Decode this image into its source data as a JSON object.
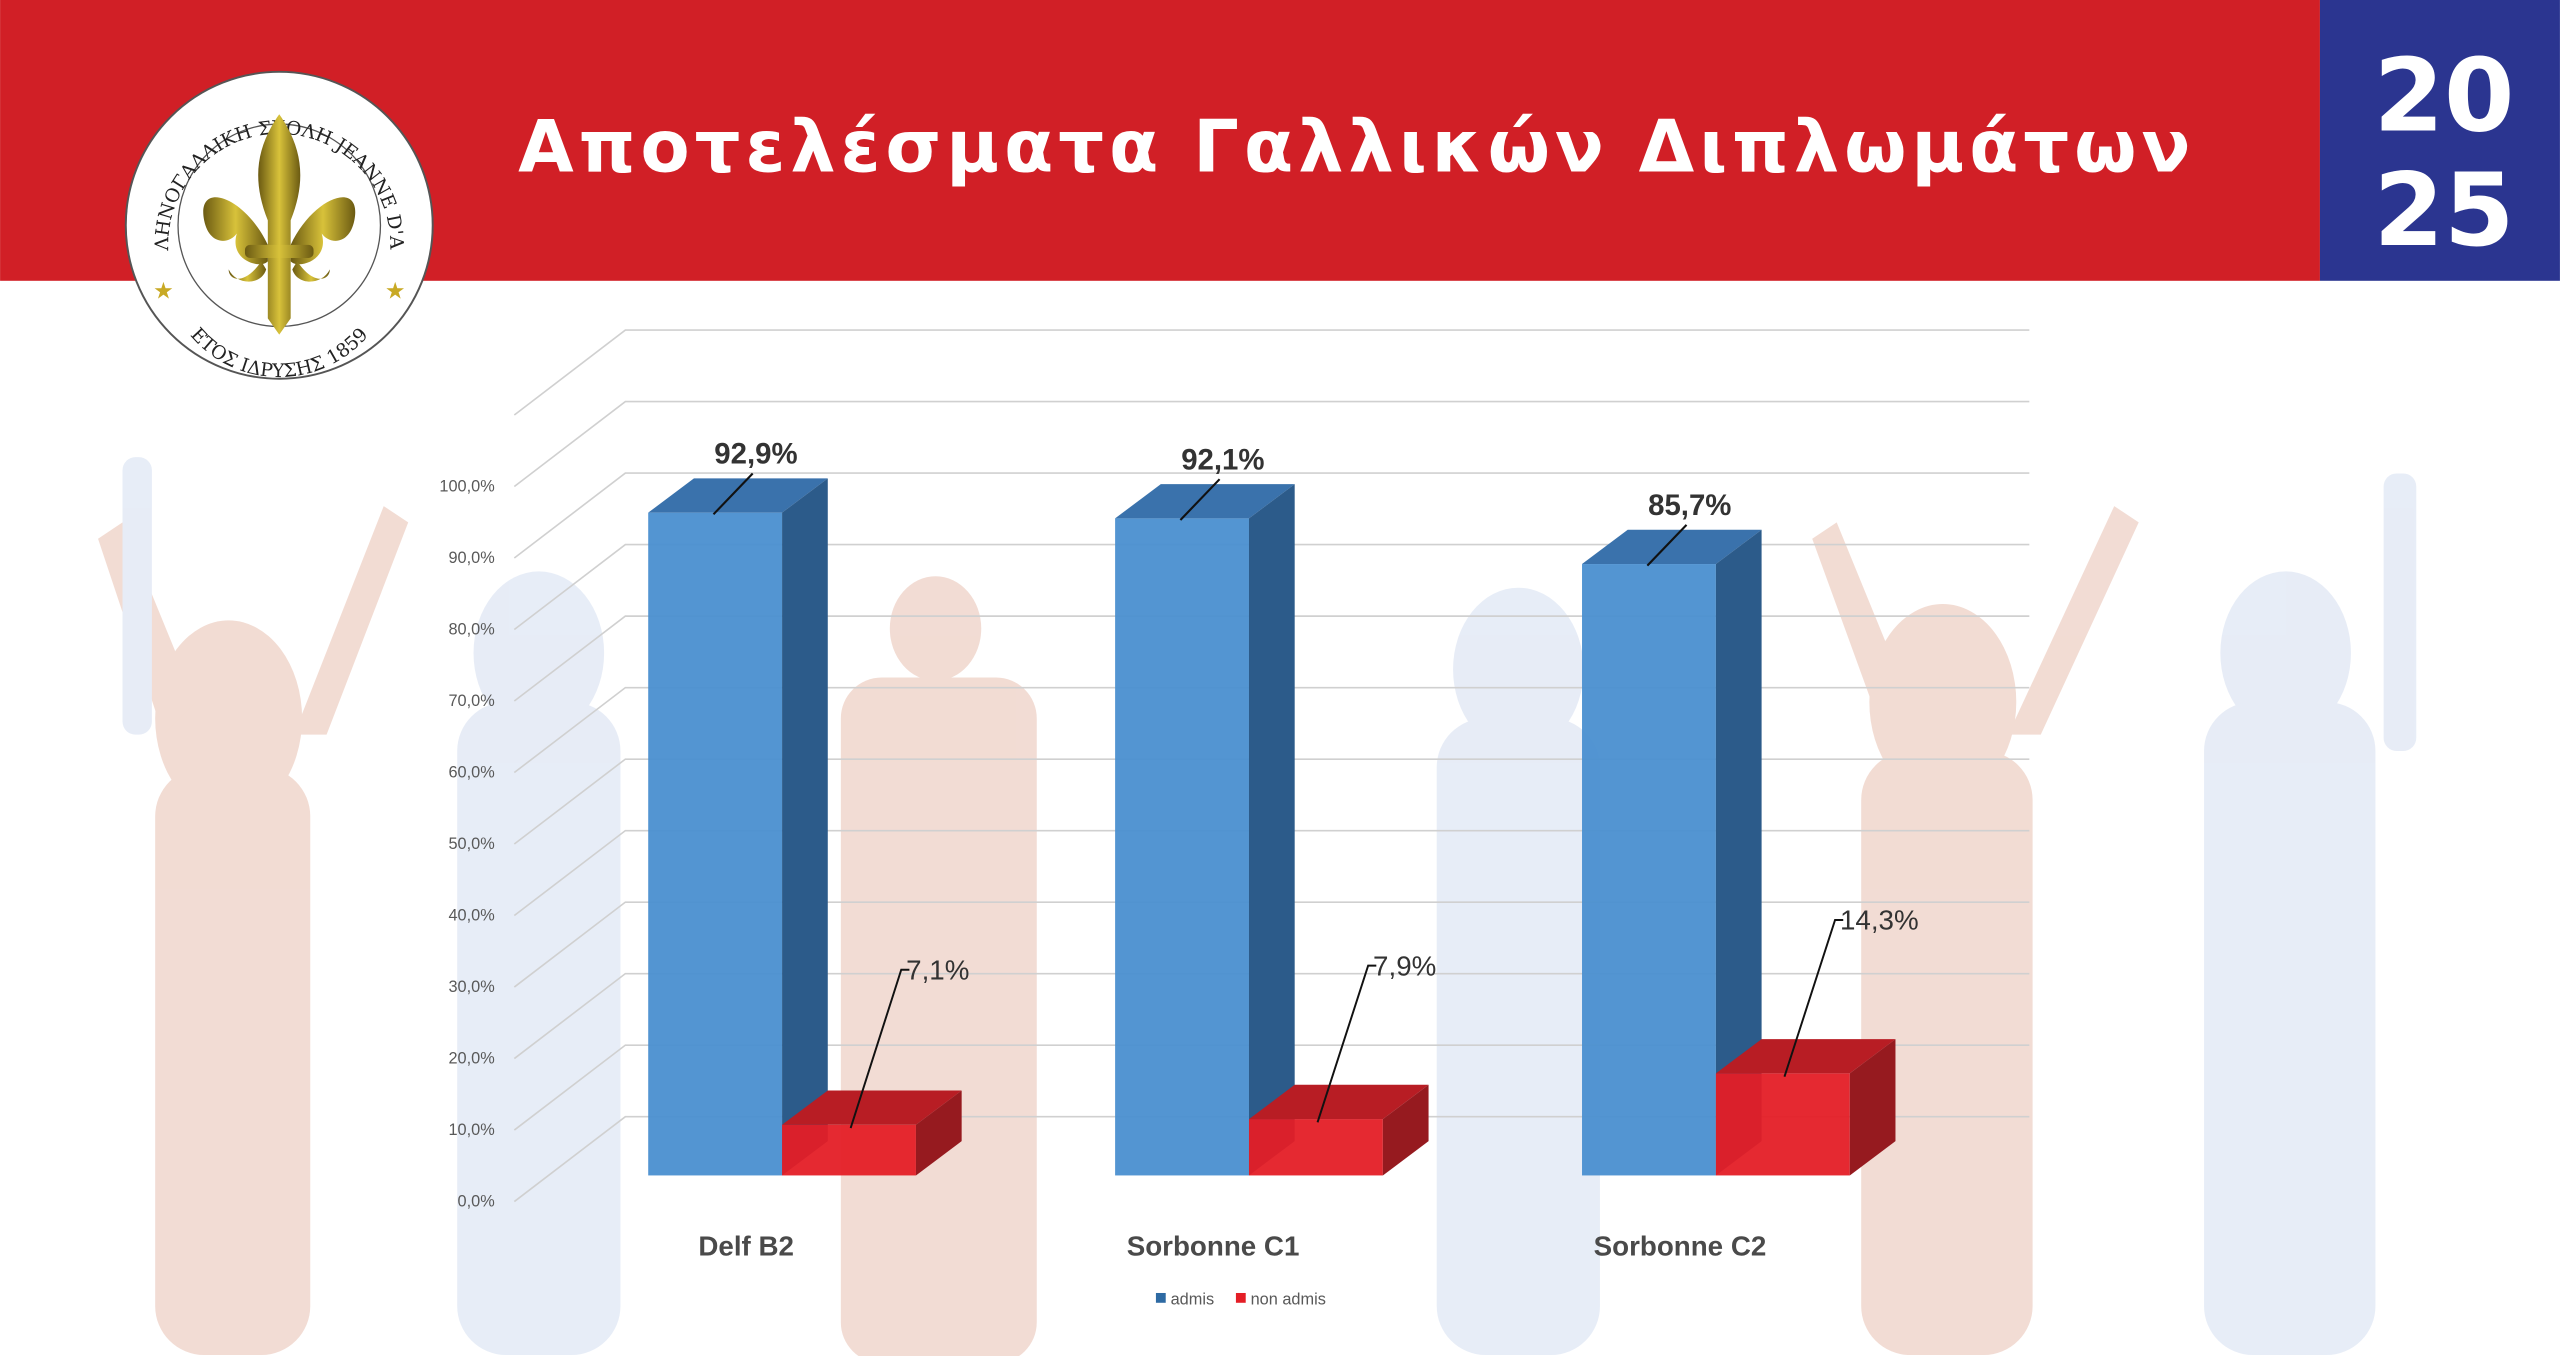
{
  "header": {
    "title": "Αποτελέσματα Γαλλικών Διπλωμάτων",
    "year_top": "20",
    "year_bottom": "25",
    "colors": {
      "banner": "#d11f26",
      "year_box": "#2b3590"
    }
  },
  "logo": {
    "ring_text_top": "ΕΛΛΗΝΟΓΑΛΛΙΚΗ ΣΧΟΛΗ JEANNE D'ARC",
    "ring_text_bottom": "ΕΤΟΣ ΙΔΡΥΣΗΣ 1859",
    "emblem": "fleur-de-lis"
  },
  "chart_data": {
    "type": "bar",
    "style": "3d-clustered-column",
    "categories": [
      "Delf B2",
      "Sorbonne C1",
      "Sorbonne C2"
    ],
    "series": [
      {
        "name": "admis",
        "values": [
          92.9,
          92.1,
          85.7
        ],
        "labels": [
          "92,9%",
          "92,1%",
          "85,7%"
        ],
        "color": "#4a8fd0"
      },
      {
        "name": "non admis",
        "values": [
          7.1,
          7.9,
          14.3
        ],
        "labels": [
          "7,1%",
          "7,9%",
          "14,3%"
        ],
        "color": "#e41e26"
      }
    ],
    "yticks": [
      "0,0%",
      "10,0%",
      "20,0%",
      "30,0%",
      "40,0%",
      "50,0%",
      "60,0%",
      "70,0%",
      "80,0%",
      "90,0%",
      "100,0%"
    ],
    "ylim": [
      0,
      100
    ],
    "grid": true,
    "legend": "bottom"
  }
}
